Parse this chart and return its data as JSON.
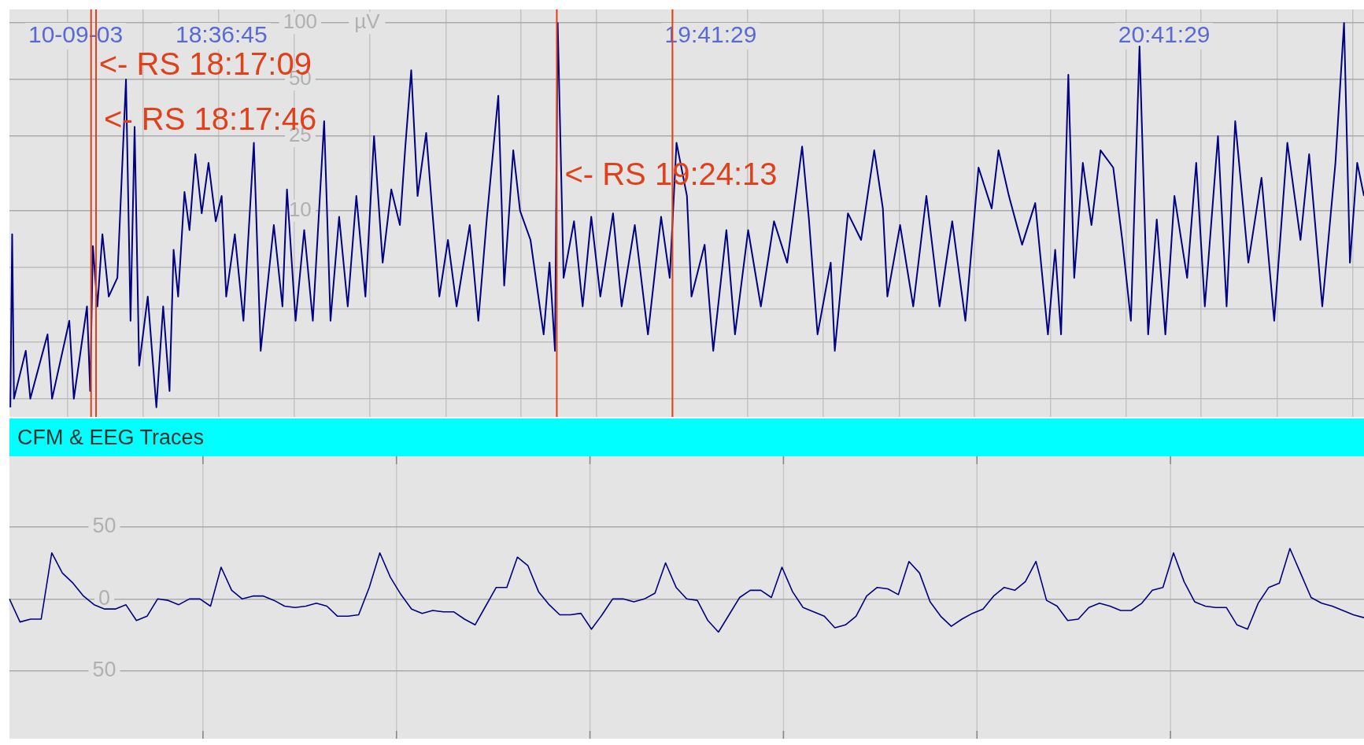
{
  "chart_data": [
    {
      "type": "line",
      "annotations": [
        "10-09-03"
      ],
      "ylabel": "µV",
      "log": "y",
      "grid": true,
      "marker": "none",
      "color": "#000080",
      "xlim": [
        18.145,
        21.132
      ],
      "ylim": [
        0.8,
        118
      ],
      "xticks": [
        {
          "value": 18.273,
          "label": null
        },
        {
          "value": 18.44,
          "label": null
        },
        {
          "value": 18.607,
          "label": null
        },
        {
          "value": 18.773,
          "label": null
        },
        {
          "value": 18.94,
          "label": null
        },
        {
          "value": 19.107,
          "label": null
        },
        {
          "value": 19.273,
          "label": null
        },
        {
          "value": 19.44,
          "label": null
        },
        {
          "value": 19.607,
          "label": null
        },
        {
          "value": 19.773,
          "label": null
        },
        {
          "value": 19.94,
          "label": null
        },
        {
          "value": 20.107,
          "label": null
        },
        {
          "value": 20.273,
          "label": null
        },
        {
          "value": 20.44,
          "label": null
        },
        {
          "value": 20.607,
          "label": null
        },
        {
          "value": 20.773,
          "label": null
        },
        {
          "value": 20.94,
          "label": null
        },
        {
          "value": 21.107,
          "label": null
        },
        {
          "value": 18.6125,
          "label": "18:36:45"
        },
        {
          "value": 19.6914,
          "label": "19:41:29"
        },
        {
          "value": 20.6914,
          "label": "20:41:29"
        }
      ],
      "yticks": [
        {
          "value": 1,
          "label": null
        },
        {
          "value": 2,
          "label": null
        },
        {
          "value": 3,
          "label": null
        },
        {
          "value": 5,
          "label": null
        },
        10,
        25,
        50,
        100
      ],
      "ref_lines": [
        {
          "axis": "x",
          "value": 18.325,
          "label": "<- RS 18:17:09",
          "color": "#e0401a"
        },
        {
          "axis": "x",
          "value": 18.336,
          "label": "<- RS 18:17:46",
          "color": "#e0401a"
        },
        {
          "axis": "x",
          "value": 19.352,
          "label": "<- RS 19:24:13",
          "color": "#e0401a"
        },
        {
          "axis": "x",
          "value": 19.607,
          "label": null,
          "color": "#e0401a"
        }
      ],
      "x": [
        18.147,
        18.151,
        18.155,
        18.181,
        18.191,
        18.229,
        18.239,
        18.277,
        18.287,
        18.316,
        18.323,
        18.329,
        18.339,
        18.35,
        18.364,
        18.383,
        18.402,
        18.412,
        18.421,
        18.431,
        18.45,
        18.469,
        18.484,
        18.498,
        18.507,
        18.517,
        18.531,
        18.542,
        18.555,
        18.569,
        18.584,
        18.6,
        18.613,
        18.623,
        18.642,
        18.661,
        18.684,
        18.699,
        18.728,
        18.747,
        18.757,
        18.776,
        18.795,
        18.814,
        18.839,
        18.853,
        18.872,
        18.891,
        18.91,
        18.93,
        18.949,
        18.968,
        18.987,
        19.006,
        19.018,
        19.031,
        19.045,
        19.064,
        19.077,
        19.093,
        19.112,
        19.131,
        19.16,
        19.179,
        19.198,
        19.223,
        19.236,
        19.256,
        19.271,
        19.294,
        19.323,
        19.336,
        19.348,
        19.354,
        19.367,
        19.39,
        19.409,
        19.428,
        19.448,
        19.476,
        19.495,
        19.524,
        19.553,
        19.582,
        19.601,
        19.616,
        19.639,
        19.649,
        19.678,
        19.697,
        19.726,
        19.745,
        19.774,
        19.802,
        19.831,
        19.86,
        19.879,
        19.893,
        19.908,
        19.927,
        19.956,
        19.965,
        19.994,
        20.023,
        20.052,
        20.071,
        20.081,
        20.109,
        20.138,
        20.167,
        20.196,
        20.224,
        20.253,
        20.282,
        20.311,
        20.326,
        20.349,
        20.378,
        20.407,
        20.435,
        20.451,
        20.464,
        20.48,
        20.493,
        20.512,
        20.531,
        20.551,
        20.579,
        20.599,
        20.618,
        20.637,
        20.656,
        20.675,
        20.694,
        20.714,
        20.742,
        20.762,
        20.781,
        20.81,
        20.829,
        20.848,
        20.877,
        20.906,
        20.934,
        20.963,
        20.992,
        21.011,
        21.04,
        21.069,
        21.088,
        21.101,
        21.117,
        21.132
      ],
      "values": [
        0.9,
        7.5,
        1.0,
        1.8,
        1.0,
        2.2,
        1.0,
        2.6,
        1.0,
        3.1,
        1.1,
        6.5,
        3.1,
        7.5,
        3.5,
        4.4,
        50,
        2.6,
        28,
        1.5,
        3.5,
        0.9,
        3.1,
        1.1,
        6.2,
        3.5,
        12.6,
        7.9,
        20,
        9.7,
        18,
        8.8,
        12,
        3.5,
        7.5,
        2.6,
        23,
        1.8,
        8.4,
        3.1,
        13,
        2.6,
        7.9,
        2.6,
        30,
        2.6,
        9.3,
        3.1,
        12,
        3.5,
        25,
        5.3,
        13,
        8.4,
        22,
        56,
        12,
        26,
        10.3,
        3.5,
        7.0,
        3.1,
        8.4,
        2.6,
        9.3,
        41,
        4.0,
        21,
        10,
        7.0,
        2.2,
        5.3,
        1.8,
        100,
        4.4,
        8.8,
        3.1,
        9.3,
        3.5,
        9.7,
        3.1,
        8.4,
        2.2,
        9.3,
        4.4,
        23,
        12,
        3.5,
        6.6,
        1.8,
        7.9,
        2.2,
        7.9,
        3.1,
        8.8,
        5.3,
        12,
        22,
        9,
        2.2,
        5.3,
        1.8,
        9.7,
        7.0,
        21,
        10.3,
        3.5,
        8.4,
        3.1,
        12,
        3.1,
        8.8,
        2.6,
        17,
        10.3,
        21,
        12,
        6.6,
        11,
        2.2,
        6.2,
        2.2,
        53,
        4.4,
        18,
        8.4,
        21,
        17,
        7.0,
        2.6,
        75,
        2.2,
        9,
        2.2,
        12,
        4.4,
        18,
        3.1,
        25,
        3.1,
        30,
        5.3,
        15,
        2.6,
        23,
        7.0,
        20,
        3.1,
        18,
        100,
        5.3,
        18,
        12
      ]
    },
    {
      "type": "line",
      "title": "CFM & EEG Traces",
      "grid": true,
      "marker": "none",
      "color": "#000080",
      "tick_labels": "y",
      "ylim": [
        -97,
        99
      ],
      "yticks": [
        {
          "value": -50,
          "label": "50"
        },
        0,
        50
      ],
      "categories": [
        null,
        null,
        null,
        null,
        null,
        null,
        null,
        null,
        null,
        null,
        null,
        null,
        null,
        null,
        null,
        null,
        null,
        null,
        null,
        null,
        null,
        null,
        null,
        null,
        null,
        null,
        null,
        null,
        null,
        null,
        null,
        null,
        null,
        null,
        null,
        null,
        null,
        null,
        null,
        null,
        null,
        null,
        null,
        null,
        null,
        null,
        null,
        null,
        null,
        null,
        null,
        null,
        null,
        null,
        null,
        null,
        null,
        null,
        null,
        null,
        null,
        null,
        null,
        null,
        null,
        null,
        null,
        null,
        null,
        null,
        null,
        null,
        null,
        null,
        null,
        null,
        null,
        null,
        null,
        null,
        null,
        null,
        null,
        null,
        null,
        null,
        null,
        null,
        null,
        null,
        null,
        null,
        null,
        null,
        null,
        null,
        null,
        null,
        null,
        null,
        null,
        null,
        null,
        null,
        null,
        null,
        null,
        null,
        null,
        null,
        null,
        null,
        null,
        null,
        null,
        null,
        null,
        null,
        null,
        null,
        null,
        null,
        null,
        null,
        null,
        null,
        null,
        null,
        null
      ],
      "values": [
        0,
        -16,
        -14,
        -14,
        32,
        18,
        11,
        2,
        -4,
        -7,
        -7,
        -4,
        -15,
        -12,
        0,
        -1,
        -4,
        0,
        0,
        -5,
        22,
        6,
        0,
        2,
        2,
        -1,
        -5,
        -6,
        -5,
        -3,
        -5,
        -12,
        -12,
        -11,
        8,
        32,
        15,
        3,
        -7,
        -10,
        -8,
        -9,
        -9,
        -14,
        -18,
        -5,
        8,
        8,
        29,
        23,
        5,
        -4,
        -11,
        -11,
        -10,
        -21,
        -11,
        0,
        0,
        -2,
        0,
        4,
        25,
        8,
        0,
        -1,
        -15,
        -23,
        -11,
        1,
        6,
        6,
        1,
        22,
        5,
        -6,
        -9,
        -12,
        -20,
        -18,
        -12,
        2,
        8,
        7,
        3,
        26,
        18,
        -2,
        -12,
        -19,
        -14,
        -10,
        -7,
        2,
        8,
        6,
        12,
        26,
        -1,
        -5,
        -15,
        -14,
        -6,
        -3,
        -5,
        -8,
        -8,
        -3,
        6,
        8,
        32,
        12,
        -2,
        -5,
        -6,
        -6,
        -18,
        -21,
        -3,
        8,
        11,
        35,
        18,
        1,
        -3,
        -5,
        -8,
        -11,
        -13
      ]
    }
  ]
}
